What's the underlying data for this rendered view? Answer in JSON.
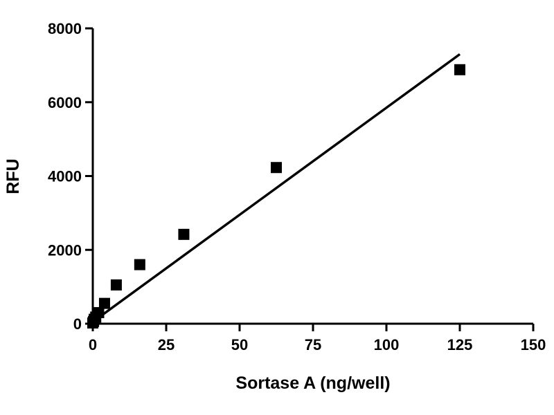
{
  "chart_data": {
    "type": "scatter",
    "title": "",
    "xlabel": "Sortase A (ng/well)",
    "ylabel": "RFU",
    "xlim": [
      0,
      150
    ],
    "ylim": [
      0,
      8000
    ],
    "xticks": [
      0,
      25,
      50,
      75,
      100,
      125,
      150
    ],
    "yticks": [
      0,
      2000,
      4000,
      6000,
      8000
    ],
    "xtick_labels": [
      "0",
      "25",
      "50",
      "75",
      "100",
      "125",
      "150"
    ],
    "ytick_labels": [
      "0",
      "2000",
      "4000",
      "6000",
      "8000"
    ],
    "grid": false,
    "legend": "none",
    "marker": "square",
    "color": "#000000",
    "series": [
      {
        "x": [
          0,
          0.25,
          0.5,
          1,
          2,
          4,
          8,
          16,
          31,
          62.5,
          125
        ],
        "y": [
          20,
          60,
          120,
          180,
          300,
          550,
          1050,
          1600,
          2420,
          4230,
          6880
        ]
      }
    ],
    "fit_line": {
      "type": "linear",
      "x_range": [
        0,
        125
      ],
      "y_range": [
        50,
        7300
      ]
    }
  }
}
